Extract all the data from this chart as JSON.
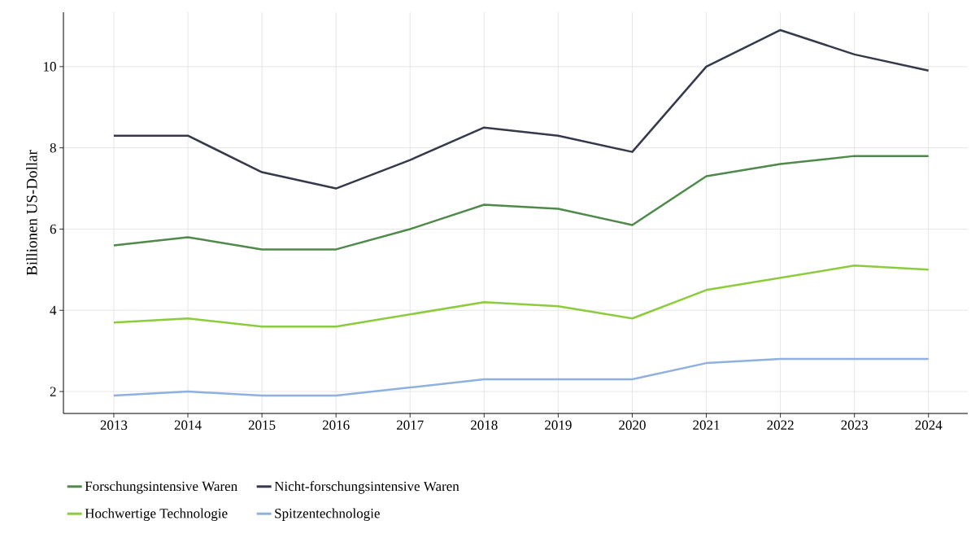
{
  "chart_data": {
    "type": "line",
    "ylabel": "Billionen US-Dollar",
    "x": [
      2013,
      2014,
      2015,
      2016,
      2017,
      2018,
      2019,
      2020,
      2021,
      2022,
      2023,
      2024
    ],
    "series": [
      {
        "name": "Forschungsintensive Waren",
        "color": "#4f8a4a",
        "values": [
          5.6,
          5.8,
          5.5,
          5.5,
          6.0,
          6.6,
          6.5,
          6.1,
          7.3,
          7.6,
          7.8,
          7.8
        ]
      },
      {
        "name": "Nicht-forschungsintensive Waren",
        "color": "#343a4a",
        "values": [
          8.3,
          8.3,
          7.4,
          7.0,
          7.7,
          8.5,
          8.3,
          7.9,
          10.0,
          10.9,
          10.3,
          9.9
        ]
      },
      {
        "name": "Hochwertige Technologie",
        "color": "#8ccc3c",
        "values": [
          3.7,
          3.8,
          3.6,
          3.6,
          3.9,
          4.2,
          4.1,
          3.8,
          4.5,
          4.8,
          5.1,
          5.0
        ]
      },
      {
        "name": "Spitzentechnologie",
        "color": "#8fb0e0",
        "values": [
          1.9,
          2.0,
          1.9,
          1.9,
          2.1,
          2.3,
          2.3,
          2.3,
          2.7,
          2.8,
          2.8,
          2.8
        ]
      }
    ],
    "xlim": [
      2012.32,
      2024.53
    ],
    "ylim": [
      1.46,
      11.34
    ],
    "xticks": [
      2013,
      2014,
      2015,
      2016,
      2017,
      2018,
      2019,
      2020,
      2021,
      2022,
      2023,
      2024
    ],
    "yticks": [
      2,
      4,
      6,
      8,
      10
    ],
    "grid": true,
    "legend": "bottom",
    "marker": "none",
    "line_style": "solid"
  }
}
